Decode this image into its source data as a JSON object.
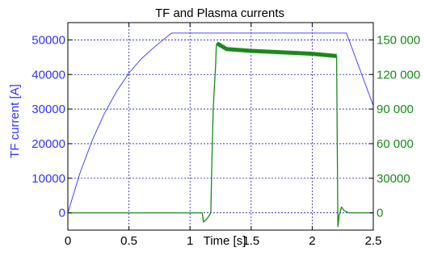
{
  "chart_data": {
    "type": "line",
    "title": "TF and Plasma currents",
    "xlabel": "Time [s]",
    "ylabel_left": "TF current [A]",
    "ylabel_right": "",
    "xlim": [
      0,
      2.5
    ],
    "ylim_left": [
      -5000,
      55000
    ],
    "ylim_right": [
      -15000,
      165000
    ],
    "grid": true,
    "x_ticks": [
      0,
      0.5,
      1,
      1.5,
      2,
      2.5
    ],
    "x_tick_labels": [
      "0",
      "0.5",
      "1",
      "1.5",
      "2",
      "2.5"
    ],
    "y_left_ticks": [
      0,
      10000,
      20000,
      30000,
      40000,
      50000
    ],
    "y_left_tick_labels": [
      "0",
      "10000",
      "20000",
      "30000",
      "40000",
      "50000"
    ],
    "y_right_ticks": [
      0,
      30000,
      60000,
      90000,
      120000,
      150000
    ],
    "y_right_tick_labels": [
      "0",
      "30000",
      "60 000",
      "90 000",
      "120 000",
      "150 000"
    ],
    "colors": {
      "tf": "#3333ff",
      "plasma": "#1a8a1a",
      "grid": "#2222aa",
      "axis": "#000000"
    },
    "series": [
      {
        "axis": "left",
        "x": [
          0,
          0.1,
          0.2,
          0.3,
          0.4,
          0.5,
          0.6,
          0.7,
          0.8,
          0.85,
          2.28,
          2.5
        ],
        "y": [
          0,
          11600,
          21000,
          28800,
          35200,
          40400,
          44500,
          47700,
          50600,
          52000,
          52000,
          31000
        ]
      },
      {
        "axis": "right",
        "x": [
          0,
          0.5,
          1.0,
          1.1,
          1.11,
          1.14,
          1.17,
          1.18,
          1.19,
          1.2,
          1.21,
          1.215,
          1.22,
          1.3,
          1.5,
          1.8,
          2.0,
          2.2,
          2.205,
          2.21,
          2.215,
          2.22,
          2.24,
          2.26,
          2.3,
          2.5
        ],
        "y": [
          0,
          0,
          0,
          0,
          -8000,
          -5000,
          0,
          50000,
          90000,
          110000,
          130000,
          145000,
          147000,
          142000,
          140500,
          139000,
          138000,
          136000,
          60000,
          -12000,
          -8000,
          -2000,
          5000,
          2000,
          0,
          0
        ]
      }
    ]
  }
}
